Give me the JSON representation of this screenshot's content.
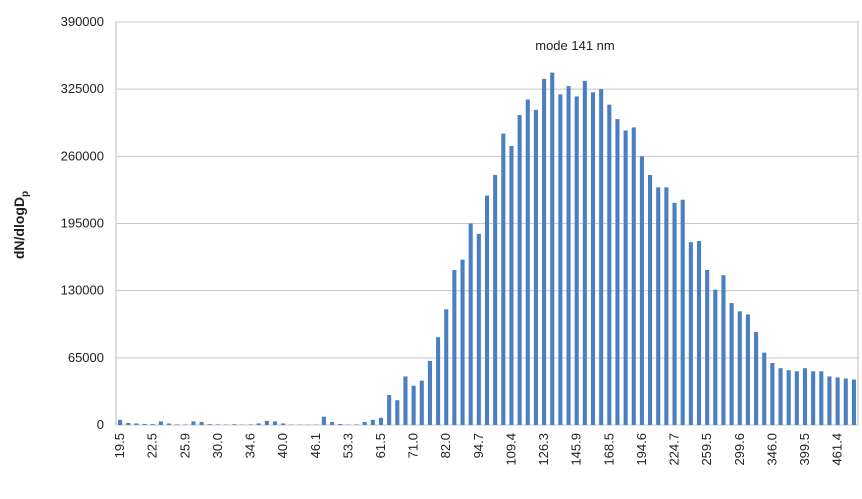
{
  "chart_data": {
    "type": "bar",
    "ylabel": "dN/dlogD",
    "ylabel_subscript": "p",
    "annotation": "mode 141 nm",
    "color": "#4a7fc1",
    "grid": true,
    "ylim": [
      0,
      390000
    ],
    "yticks": [
      0,
      65000,
      130000,
      195000,
      260000,
      325000,
      390000
    ],
    "categories": [
      "19.5",
      null,
      null,
      null,
      "22.5",
      null,
      null,
      null,
      "25.9",
      null,
      null,
      null,
      "30.0",
      null,
      null,
      null,
      "34.6",
      null,
      null,
      null,
      "40.0",
      null,
      null,
      null,
      "46.1",
      null,
      null,
      null,
      "53.3",
      null,
      null,
      null,
      "61.5",
      null,
      null,
      null,
      "71.0",
      null,
      null,
      null,
      "82.0",
      null,
      null,
      null,
      "94.7",
      null,
      null,
      null,
      "109.4",
      null,
      null,
      null,
      "126.3",
      null,
      null,
      null,
      "145.9",
      null,
      null,
      null,
      "168.5",
      null,
      null,
      null,
      "194.6",
      null,
      null,
      null,
      "224.7",
      null,
      null,
      null,
      "259.5",
      null,
      null,
      null,
      "299.6",
      null,
      null,
      null,
      "346.0",
      null,
      null,
      null,
      "399.5",
      null,
      null,
      null,
      "461.4",
      null,
      null
    ],
    "values": [
      5000,
      2000,
      1500,
      1000,
      800,
      3500,
      1500,
      500,
      400,
      3500,
      3000,
      800,
      500,
      400,
      700,
      300,
      500,
      1500,
      4000,
      3500,
      1500,
      300,
      300,
      200,
      300,
      8000,
      3000,
      1000,
      300,
      500,
      3000,
      5000,
      7000,
      29000,
      24000,
      47000,
      38000,
      43000,
      62000,
      85000,
      112000,
      150000,
      160000,
      195000,
      185000,
      222000,
      242000,
      282000,
      270000,
      300000,
      315000,
      305000,
      335000,
      341000,
      320000,
      328000,
      318000,
      333000,
      322000,
      325000,
      310000,
      296000,
      285000,
      288000,
      260000,
      242000,
      230000,
      230000,
      215000,
      218000,
      177000,
      178000,
      150000,
      131000,
      145000,
      118000,
      110000,
      107000,
      90000,
      70000,
      60000,
      55000,
      53000,
      52000,
      55000,
      52000,
      52000,
      47000,
      46000,
      45000,
      44000
    ]
  }
}
